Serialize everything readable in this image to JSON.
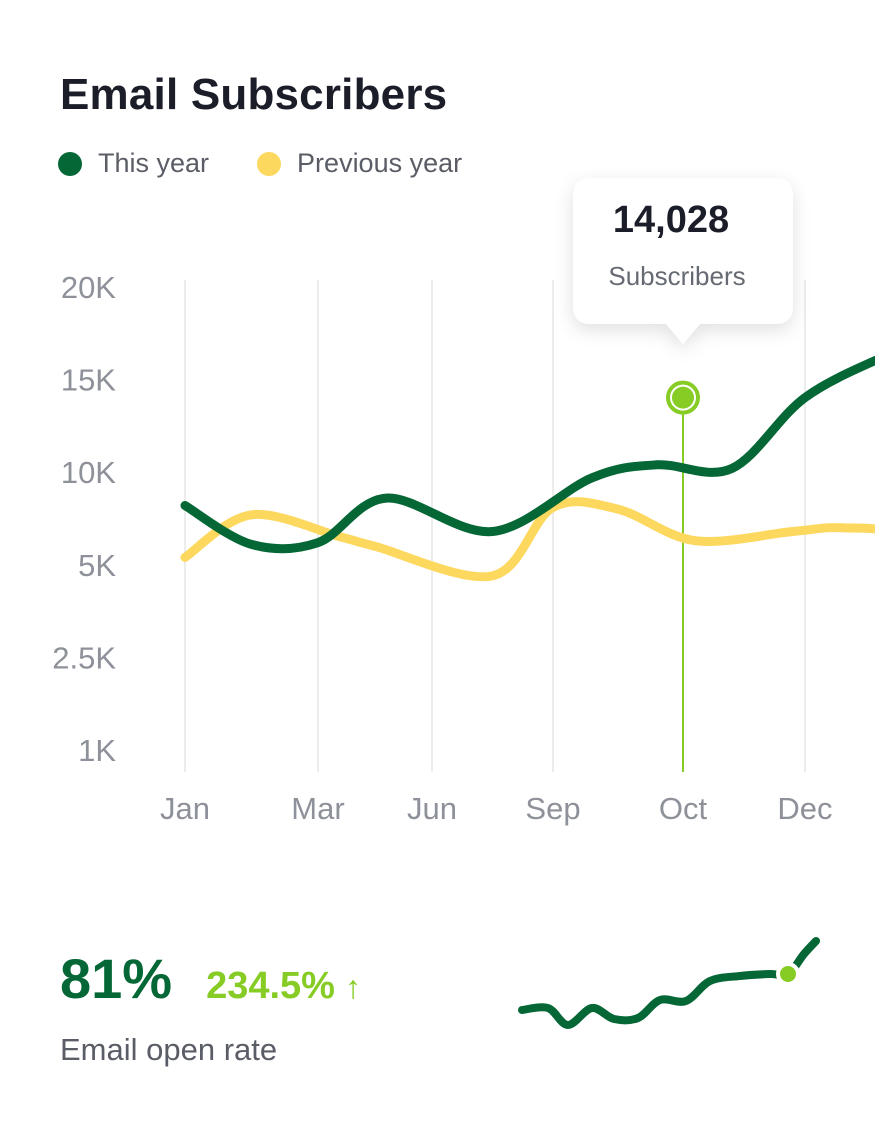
{
  "header": {
    "title": "Email Subscribers"
  },
  "colors": {
    "this_year": "#046735",
    "previous_year": "#fdd85f",
    "highlight": "#86cc24",
    "grid": "#ececec"
  },
  "chart_data": {
    "type": "line",
    "legend": [
      "This year",
      "Previous year"
    ],
    "legend_position": "top-left",
    "x_ticks": [
      "Jan",
      "Mar",
      "Jun",
      "Sep",
      "Oct",
      "Dec"
    ],
    "y_ticks": [
      "20K",
      "15K",
      "10K",
      "5K",
      "2.5K",
      "1K"
    ],
    "y_scale": "ordinal-log",
    "grid": "vertical",
    "series": [
      {
        "name": "This year",
        "points": [
          {
            "x": 0.0,
            "y": 8200
          },
          {
            "x": 0.5,
            "y": 6100
          },
          {
            "x": 1.0,
            "y": 6200
          },
          {
            "x": 1.6,
            "y": 8600
          },
          {
            "x": 2.5,
            "y": 6800
          },
          {
            "x": 3.3,
            "y": 9700
          },
          {
            "x": 3.8,
            "y": 10400
          },
          {
            "x": 4.4,
            "y": 10200
          },
          {
            "x": 5.0,
            "y": 14028
          },
          {
            "x": 5.7,
            "y": 16400
          },
          {
            "x": 6.3,
            "y": 18000
          }
        ]
      },
      {
        "name": "Previous year",
        "points": [
          {
            "x": 0.0,
            "y": 5400
          },
          {
            "x": 0.5,
            "y": 7700
          },
          {
            "x": 1.2,
            "y": 6500
          },
          {
            "x": 1.5,
            "y": 6000
          },
          {
            "x": 2.5,
            "y": 4700
          },
          {
            "x": 3.0,
            "y": 8100
          },
          {
            "x": 3.5,
            "y": 8000
          },
          {
            "x": 4.1,
            "y": 6300
          },
          {
            "x": 4.9,
            "y": 6800
          },
          {
            "x": 5.3,
            "y": 7000
          },
          {
            "x": 5.8,
            "y": 6500
          },
          {
            "x": 6.2,
            "y": 4200
          },
          {
            "x": 6.5,
            "y": 4700
          }
        ]
      }
    ],
    "highlight": {
      "x_label": "Oct",
      "value": "14,028",
      "label": "Subscribers"
    }
  },
  "stats": {
    "value": "81%",
    "change": "234.5%",
    "arrow_icon": "↑",
    "label": "Email open rate"
  }
}
